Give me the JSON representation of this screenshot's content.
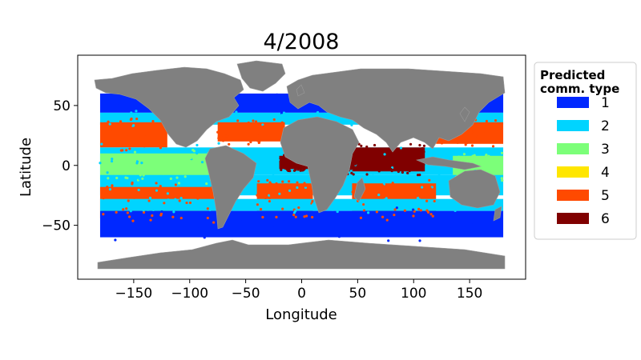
{
  "chart_data": {
    "type": "map-scatter",
    "title": "4/2008",
    "xlabel": "Longitude",
    "ylabel": "Latitude",
    "xlim": [
      -200,
      200
    ],
    "ylim": [
      -95,
      92
    ],
    "xticks": [
      -150,
      -100,
      -50,
      0,
      50,
      100,
      150
    ],
    "yticks": [
      -50,
      0,
      50
    ],
    "xtick_labels": [
      "−150",
      "−100",
      "−50",
      "0",
      "50",
      "100",
      "150"
    ],
    "ytick_labels": [
      "−50",
      "0",
      "50"
    ],
    "grid": false,
    "legend": {
      "title": "Predicted\ncomm. type",
      "placement": "right-outside-top",
      "entries": [
        {
          "label": "1",
          "color": "#0028ff"
        },
        {
          "label": "2",
          "color": "#00d4ff"
        },
        {
          "label": "3",
          "color": "#7cff79"
        },
        {
          "label": "4",
          "color": "#ffe600"
        },
        {
          "label": "5",
          "color": "#ff4a00"
        },
        {
          "label": "6",
          "color": "#800000"
        }
      ]
    },
    "land_color": "#808080",
    "ocean_bands": [
      {
        "class": "1",
        "lat": [
          44,
          60
        ],
        "lon": [
          -180,
          180
        ]
      },
      {
        "class": "2",
        "lat": [
          34,
          44
        ],
        "lon": [
          -180,
          180
        ]
      },
      {
        "class": "5",
        "lat": [
          15,
          36
        ],
        "lon": [
          -180,
          -120
        ]
      },
      {
        "class": "5",
        "lat": [
          18,
          36
        ],
        "lon": [
          120,
          180
        ]
      },
      {
        "class": "5",
        "lat": [
          20,
          36
        ],
        "lon": [
          -75,
          -15
        ]
      },
      {
        "class": "2",
        "lat": [
          -8,
          15
        ],
        "lon": [
          -180,
          180
        ]
      },
      {
        "class": "3",
        "lat": [
          -12,
          10
        ],
        "lon": [
          -180,
          -80
        ]
      },
      {
        "class": "3",
        "lat": [
          -10,
          8
        ],
        "lon": [
          135,
          180
        ]
      },
      {
        "class": "2",
        "lat": [
          -25,
          -8
        ],
        "lon": [
          -180,
          180
        ]
      },
      {
        "class": "5",
        "lat": [
          -44,
          -18
        ],
        "lon": [
          -180,
          -75
        ]
      },
      {
        "class": "5",
        "lat": [
          -40,
          -15
        ],
        "lon": [
          -40,
          10
        ]
      },
      {
        "class": "5",
        "lat": [
          -42,
          -15
        ],
        "lon": [
          45,
          120
        ]
      },
      {
        "class": "2",
        "lat": [
          -38,
          -28
        ],
        "lon": [
          -180,
          180
        ]
      },
      {
        "class": "1",
        "lat": [
          -60,
          -38
        ],
        "lon": [
          -180,
          180
        ]
      },
      {
        "class": "6",
        "lat": [
          -5,
          15
        ],
        "lon": [
          40,
          110
        ]
      },
      {
        "class": "6",
        "lat": [
          -3,
          8
        ],
        "lon": [
          -20,
          15
        ]
      }
    ]
  }
}
